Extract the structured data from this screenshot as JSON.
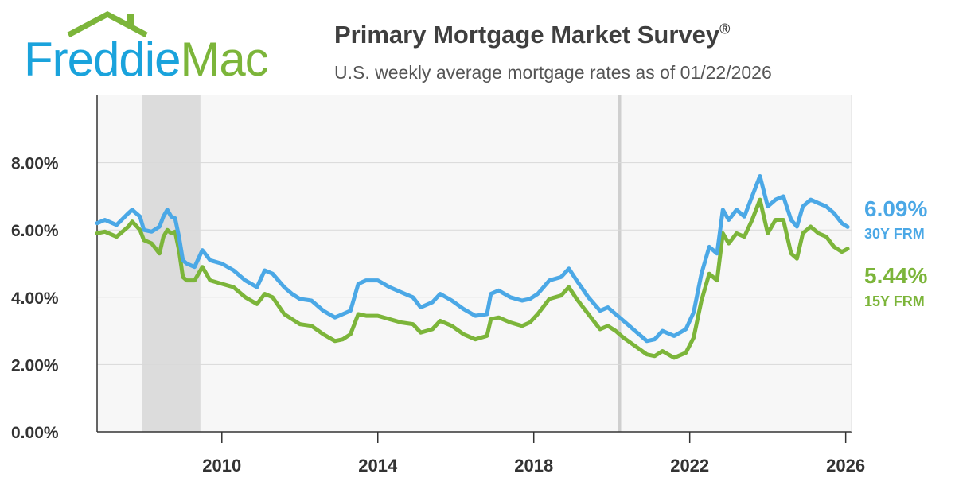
{
  "header": {
    "logo_word1": "Freddie",
    "logo_word2": "Mac",
    "title": "Primary Mortgage Market Survey",
    "title_mark": "®",
    "subtitle": "U.S. weekly average mortgage rates as of 01/22/2026"
  },
  "colors": {
    "blue": "#4ba8e6",
    "green": "#7cb53a",
    "recession": "#dcdcdc",
    "plot_bg": "#f7f7f7",
    "grid": "#d9d9d9"
  },
  "chart_data": {
    "type": "line",
    "title": "Primary Mortgage Market Survey",
    "xlim": [
      2006.8,
      2026.15
    ],
    "ylim": [
      0,
      10
    ],
    "y_ticks": [
      {
        "value": 0,
        "label": "0.00%"
      },
      {
        "value": 2,
        "label": "2.00%"
      },
      {
        "value": 4,
        "label": "4.00%"
      },
      {
        "value": 6,
        "label": "6.00%"
      },
      {
        "value": 8,
        "label": "8.00%"
      }
    ],
    "x_ticks": [
      {
        "value": 2010,
        "label": "2010"
      },
      {
        "value": 2014,
        "label": "2014"
      },
      {
        "value": 2018,
        "label": "2018"
      },
      {
        "value": 2022,
        "label": "2022"
      },
      {
        "value": 2026,
        "label": "2026"
      }
    ],
    "grid": true,
    "shaded_ranges": [
      [
        2007.95,
        2009.45
      ]
    ],
    "vertical_lines": [
      2020.2
    ],
    "series": [
      {
        "name": "30Y FRM",
        "color": "#4ba8e6",
        "last_value_label": "6.09%",
        "x": [
          2006.8,
          2007.0,
          2007.3,
          2007.6,
          2007.7,
          2007.9,
          2008.0,
          2008.2,
          2008.4,
          2008.5,
          2008.6,
          2008.7,
          2008.8,
          2008.9,
          2009.0,
          2009.1,
          2009.3,
          2009.5,
          2009.7,
          2010.0,
          2010.3,
          2010.6,
          2010.9,
          2011.1,
          2011.3,
          2011.6,
          2011.8,
          2012.0,
          2012.3,
          2012.6,
          2012.9,
          2013.1,
          2013.3,
          2013.5,
          2013.7,
          2014.0,
          2014.3,
          2014.6,
          2014.9,
          2015.1,
          2015.4,
          2015.6,
          2015.9,
          2016.2,
          2016.5,
          2016.8,
          2016.9,
          2017.1,
          2017.4,
          2017.7,
          2017.9,
          2018.1,
          2018.4,
          2018.7,
          2018.9,
          2019.1,
          2019.4,
          2019.7,
          2019.9,
          2020.1,
          2020.3,
          2020.6,
          2020.9,
          2021.1,
          2021.3,
          2021.6,
          2021.9,
          2022.1,
          2022.3,
          2022.5,
          2022.7,
          2022.85,
          2023.0,
          2023.2,
          2023.4,
          2023.6,
          2023.8,
          2024.0,
          2024.2,
          2024.4,
          2024.6,
          2024.75,
          2024.9,
          2025.1,
          2025.3,
          2025.5,
          2025.7,
          2025.9,
          2026.05
        ],
        "y": [
          6.2,
          6.3,
          6.15,
          6.5,
          6.6,
          6.4,
          6.0,
          5.95,
          6.1,
          6.4,
          6.6,
          6.4,
          6.35,
          5.8,
          5.1,
          5.0,
          4.9,
          5.4,
          5.1,
          5.0,
          4.8,
          4.5,
          4.3,
          4.8,
          4.7,
          4.3,
          4.1,
          3.95,
          3.9,
          3.6,
          3.4,
          3.5,
          3.6,
          4.4,
          4.5,
          4.5,
          4.3,
          4.15,
          4.0,
          3.7,
          3.85,
          4.1,
          3.9,
          3.65,
          3.45,
          3.5,
          4.1,
          4.2,
          4.0,
          3.9,
          3.95,
          4.1,
          4.5,
          4.6,
          4.85,
          4.5,
          4.0,
          3.6,
          3.7,
          3.5,
          3.3,
          3.0,
          2.7,
          2.75,
          3.0,
          2.85,
          3.05,
          3.55,
          4.7,
          5.5,
          5.3,
          6.6,
          6.3,
          6.6,
          6.4,
          7.0,
          7.6,
          6.7,
          6.9,
          7.0,
          6.3,
          6.1,
          6.7,
          6.9,
          6.8,
          6.7,
          6.5,
          6.2,
          6.09
        ]
      },
      {
        "name": "15Y FRM",
        "color": "#7cb53a",
        "last_value_label": "5.44%",
        "x": [
          2006.8,
          2007.0,
          2007.3,
          2007.6,
          2007.7,
          2007.9,
          2008.0,
          2008.2,
          2008.4,
          2008.5,
          2008.6,
          2008.7,
          2008.8,
          2008.9,
          2009.0,
          2009.1,
          2009.3,
          2009.5,
          2009.7,
          2010.0,
          2010.3,
          2010.6,
          2010.9,
          2011.1,
          2011.3,
          2011.6,
          2011.8,
          2012.0,
          2012.3,
          2012.6,
          2012.9,
          2013.1,
          2013.3,
          2013.5,
          2013.7,
          2014.0,
          2014.3,
          2014.6,
          2014.9,
          2015.1,
          2015.4,
          2015.6,
          2015.9,
          2016.2,
          2016.5,
          2016.8,
          2016.9,
          2017.1,
          2017.4,
          2017.7,
          2017.9,
          2018.1,
          2018.4,
          2018.7,
          2018.9,
          2019.1,
          2019.4,
          2019.7,
          2019.9,
          2020.1,
          2020.3,
          2020.6,
          2020.9,
          2021.1,
          2021.3,
          2021.6,
          2021.9,
          2022.1,
          2022.3,
          2022.5,
          2022.7,
          2022.85,
          2023.0,
          2023.2,
          2023.4,
          2023.6,
          2023.8,
          2024.0,
          2024.2,
          2024.4,
          2024.6,
          2024.75,
          2024.9,
          2025.1,
          2025.3,
          2025.5,
          2025.7,
          2025.9,
          2026.05
        ],
        "y": [
          5.9,
          5.95,
          5.8,
          6.1,
          6.25,
          6.0,
          5.7,
          5.6,
          5.3,
          5.8,
          6.0,
          5.9,
          5.95,
          5.4,
          4.6,
          4.5,
          4.5,
          4.9,
          4.5,
          4.4,
          4.3,
          4.0,
          3.8,
          4.1,
          4.0,
          3.5,
          3.35,
          3.2,
          3.15,
          2.9,
          2.7,
          2.75,
          2.9,
          3.5,
          3.45,
          3.45,
          3.35,
          3.25,
          3.2,
          2.95,
          3.05,
          3.3,
          3.15,
          2.9,
          2.75,
          2.85,
          3.35,
          3.4,
          3.25,
          3.15,
          3.25,
          3.5,
          3.95,
          4.05,
          4.3,
          3.95,
          3.5,
          3.05,
          3.15,
          3.0,
          2.8,
          2.55,
          2.3,
          2.25,
          2.4,
          2.2,
          2.35,
          2.8,
          3.9,
          4.7,
          4.5,
          5.9,
          5.6,
          5.9,
          5.8,
          6.3,
          6.9,
          5.9,
          6.3,
          6.3,
          5.3,
          5.15,
          5.9,
          6.1,
          5.9,
          5.8,
          5.5,
          5.35,
          5.44
        ]
      }
    ]
  }
}
